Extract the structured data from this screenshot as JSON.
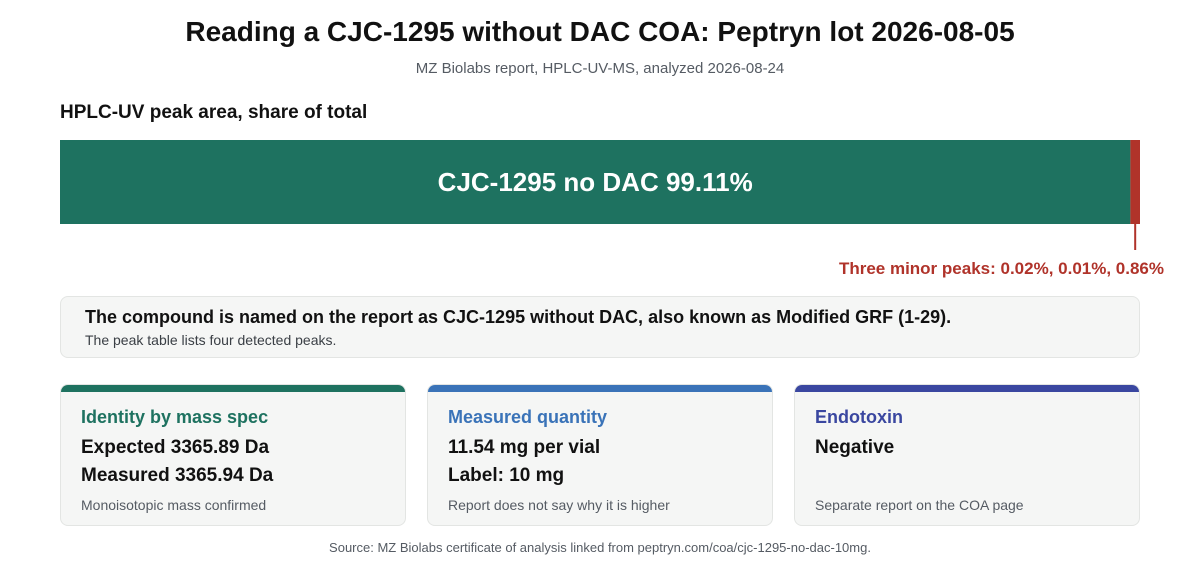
{
  "header": {
    "title": "Reading a CJC-1295 without DAC COA: Peptryn lot 2026-08-05",
    "subtitle": "MZ Biolabs report, HPLC-UV-MS, analyzed 2026-08-24"
  },
  "chart_data": {
    "type": "bar",
    "orientation": "horizontal-stacked",
    "title": "HPLC-UV peak area, share of total",
    "unit": "%",
    "xlim": [
      0,
      100
    ],
    "grid": false,
    "series": [
      {
        "name": "CJC-1295 no DAC",
        "value": 99.11,
        "label": "CJC-1295 no DAC 99.11%",
        "color": "#1e7260"
      },
      {
        "name": "Three minor peaks",
        "value": 0.89,
        "label": "Three minor peaks: 0.02%, 0.01%, 0.86%",
        "color": "#b0332a",
        "components": [
          0.02,
          0.01,
          0.86
        ]
      }
    ]
  },
  "note": {
    "main": "The compound is named on the report as CJC-1295 without DAC, also known as Modified GRF (1-29).",
    "sub": "The peak table lists four detected peaks."
  },
  "cards": [
    {
      "title": "Identity by mass spec",
      "line1": "Expected 3365.89 Da",
      "line2": "Measured 3365.94 Da",
      "foot": "Monoisotopic mass confirmed",
      "color": "#1e7260"
    },
    {
      "title": "Measured quantity",
      "line1": "11.54 mg per vial",
      "line2": "Label: 10 mg",
      "foot": "Report does not say why it is higher",
      "color": "#3a73b8"
    },
    {
      "title": "Endotoxin",
      "line1": "Negative",
      "line2": "",
      "foot": "Separate report on the COA page",
      "color": "#3a47a0"
    }
  ],
  "footer": {
    "source": "Source: MZ Biolabs certificate of analysis linked from peptryn.com/coa/cjc-1295-no-dac-10mg."
  }
}
